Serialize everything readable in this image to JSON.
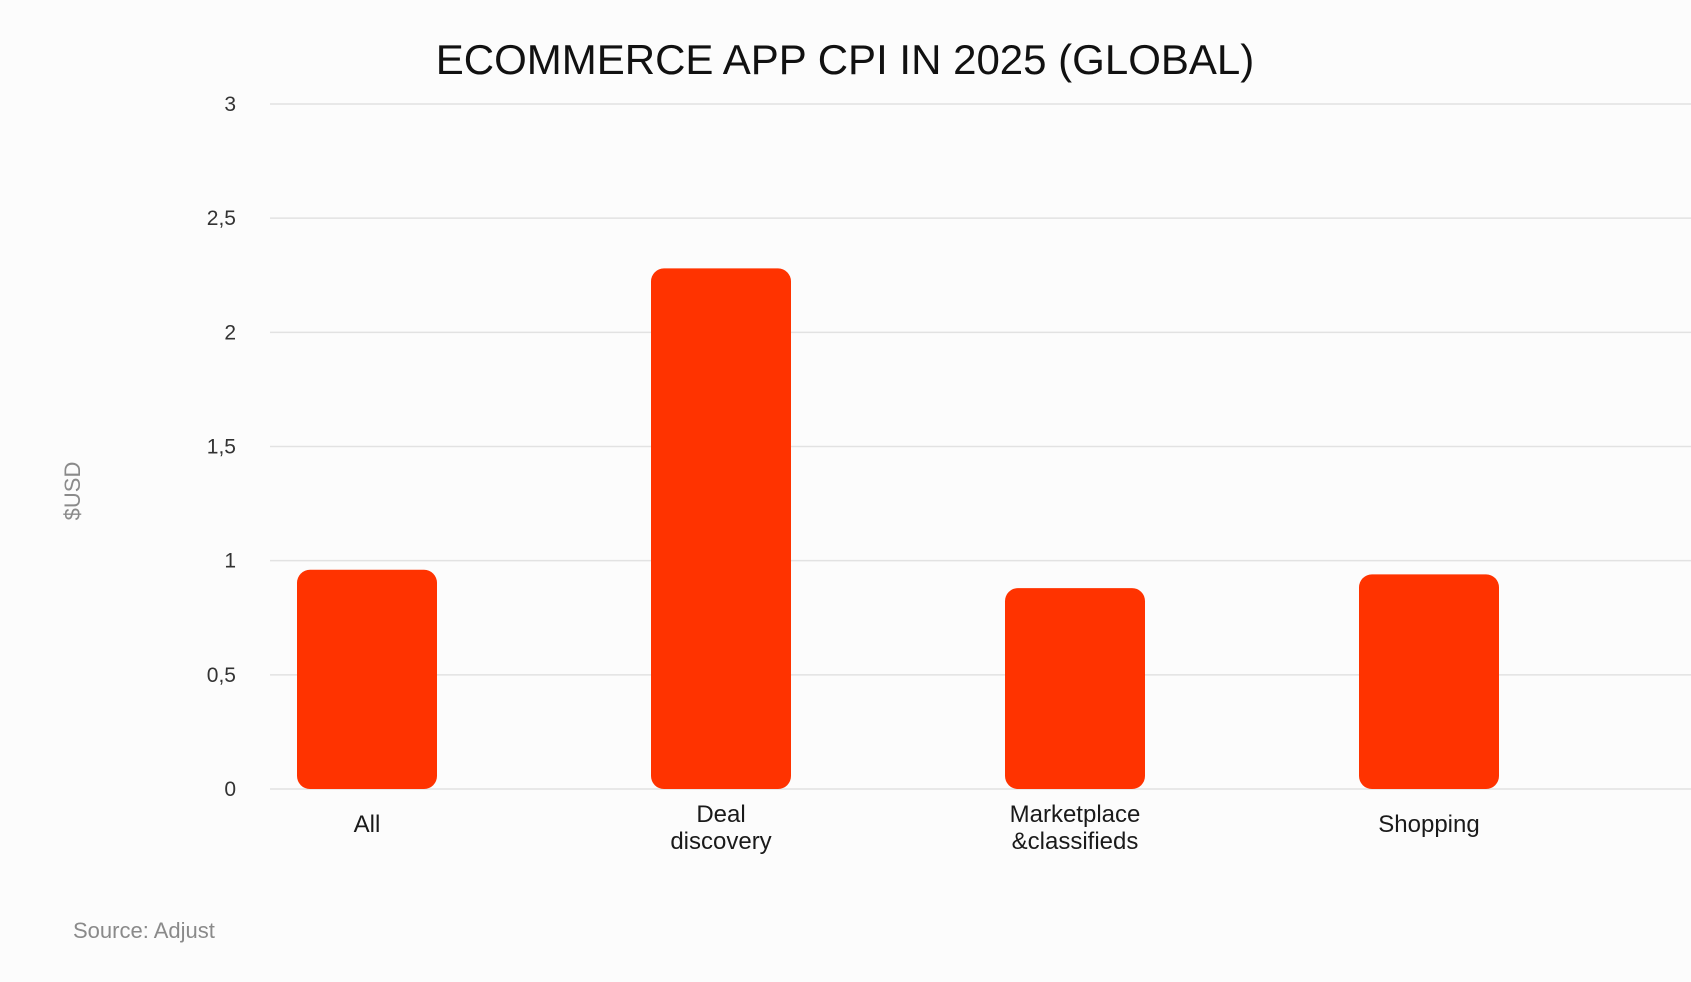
{
  "chart_data": {
    "type": "bar",
    "title": "ECOMMERCE APP CPI IN 2025 (GLOBAL)",
    "ylabel": "$USD",
    "xlabel": "",
    "categories": [
      [
        "All"
      ],
      [
        "Deal",
        "discovery"
      ],
      [
        "Marketplace",
        "&classifieds"
      ],
      [
        "Shopping"
      ]
    ],
    "values": [
      0.96,
      2.28,
      0.88,
      0.94
    ],
    "ylim": [
      0,
      3
    ],
    "yticks": [
      {
        "value": 0,
        "label": "0"
      },
      {
        "value": 0.5,
        "label": "0,5"
      },
      {
        "value": 1,
        "label": "1"
      },
      {
        "value": 1.5,
        "label": "1,5"
      },
      {
        "value": 2,
        "label": "2"
      },
      {
        "value": 2.5,
        "label": "2,5"
      },
      {
        "value": 3,
        "label": "3"
      }
    ],
    "grid": true,
    "legend": "none",
    "bar_color": "#ff3300"
  },
  "source": "Source: Adjust"
}
